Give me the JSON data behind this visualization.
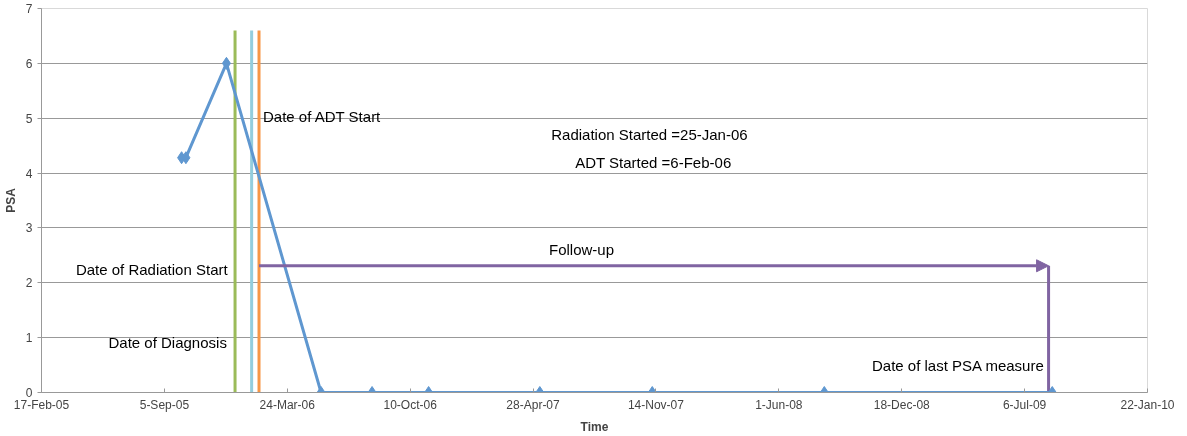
{
  "chart_data": {
    "type": "line",
    "xlabel": "Time",
    "ylabel": "PSA",
    "x": [
      "2005-10-03",
      "2005-10-10",
      "2005-12-15",
      "2006-05-18",
      "2006-08-09",
      "2006-11-09",
      "2007-05-09",
      "2007-11-08",
      "2008-08-14",
      "2009-08-20"
    ],
    "series": [
      {
        "color": "#5f97d0",
        "values": [
          4.28,
          4.28,
          6.0,
          0,
          0,
          0,
          0,
          0,
          0,
          0
        ]
      }
    ],
    "marker": "diamond",
    "line_style": "solid",
    "grid": "y",
    "xlim": [
      "2005-02-17",
      "2010-01-22"
    ],
    "xticks": [
      {
        "value": "2005-02-17",
        "label": "17-Feb-05"
      },
      {
        "value": "2005-09-05",
        "label": "5-Sep-05"
      },
      {
        "value": "2006-03-24",
        "label": "24-Mar-06"
      },
      {
        "value": "2006-10-10",
        "label": "10-Oct-06"
      },
      {
        "value": "2007-04-28",
        "label": "28-Apr-07"
      },
      {
        "value": "2007-11-14",
        "label": "14-Nov-07"
      },
      {
        "value": "2008-06-01",
        "label": "1-Jun-08"
      },
      {
        "value": "2008-12-18",
        "label": "18-Dec-08"
      },
      {
        "value": "2009-07-06",
        "label": "6-Jul-09"
      },
      {
        "value": "2010-01-22",
        "label": "22-Jan-10"
      }
    ],
    "ylim": [
      0,
      7
    ],
    "yticks": [
      0,
      1,
      2,
      3,
      4,
      5,
      6,
      7
    ],
    "ref_lines": [
      {
        "axis": "x",
        "value": "2005-12-29",
        "label": "Date of  Diagnosis",
        "color": "#9bbb59"
      },
      {
        "axis": "x",
        "value": "2006-01-25",
        "label": "Date of Radiation Start",
        "color": "#93cddd"
      },
      {
        "axis": "x",
        "value": "2006-02-06",
        "label": "Date of ADT Start",
        "color": "#f79646"
      },
      {
        "axis": "x",
        "value": "2009-08-14",
        "label": "Date of last PSA measure",
        "color": "#8064a2"
      }
    ],
    "annotations": [
      "Radiation Started  =25-Jan-06",
      "ADT  Started  =6-Feb-06",
      "Follow-up"
    ]
  }
}
